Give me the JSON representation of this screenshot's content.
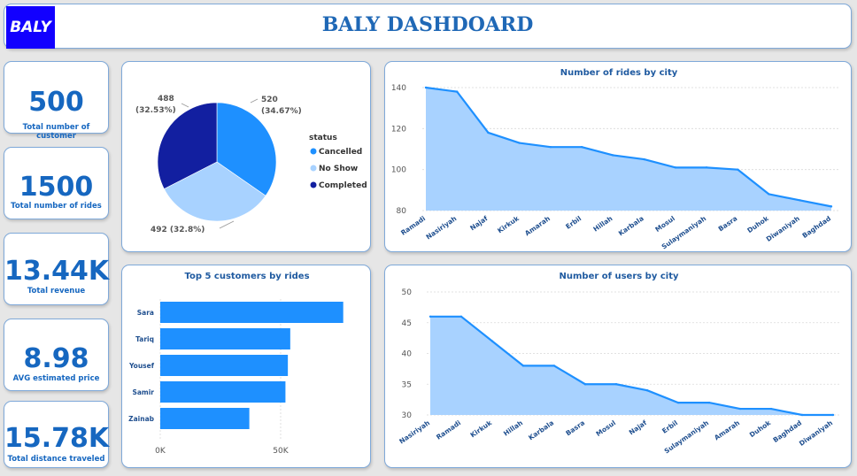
{
  "header": {
    "logo": "BALY",
    "title": "BALY DASHDOARD"
  },
  "kpis": [
    {
      "value": "500",
      "label": "Total number of customer"
    },
    {
      "value": "1500",
      "label": "Total number of rides"
    },
    {
      "value": "13.44K",
      "label": "Total revenue"
    },
    {
      "value": "8.98",
      "label": "AVG estimated price"
    },
    {
      "value": "15.78K",
      "label": "Total distance traveled"
    }
  ],
  "colors": {
    "primary": "#1e90ff",
    "light": "#a8d2ff",
    "dark": "#121fa0",
    "kpi_text": "#1667c0"
  },
  "chart_data": [
    {
      "type": "pie",
      "legend_title": "status",
      "legend_position": "right",
      "slices": [
        {
          "name": "Cancelled",
          "value": 520,
          "label": "520",
          "pct": "(34.67%)",
          "color": "#1e90ff"
        },
        {
          "name": "No Show",
          "value": 492,
          "label": "492 (32.8%)",
          "pct": "",
          "color": "#a8d2ff"
        },
        {
          "name": "Completed",
          "value": 488,
          "label": "488",
          "pct": "(32.53%)",
          "color": "#121fa0"
        }
      ]
    },
    {
      "type": "area",
      "title": "Number of rides by city",
      "categories": [
        "Ramadi",
        "Nasiriyah",
        "Najaf",
        "Kirkuk",
        "Amarah",
        "Erbil",
        "Hillah",
        "Karbala",
        "Mosul",
        "Sulaymaniyah",
        "Basra",
        "Duhok",
        "Diwaniyah",
        "Baghdad"
      ],
      "values": [
        140,
        138,
        118,
        113,
        111,
        111,
        107,
        105,
        101,
        101,
        100,
        88,
        85,
        82
      ],
      "ylim": [
        80,
        140
      ],
      "yticks": [
        "80",
        "100",
        "120",
        "140"
      ],
      "grid": true
    },
    {
      "type": "bar",
      "orientation": "horizontal",
      "title": "Top 5 customers by rides",
      "categories": [
        "Sara",
        "Tariq",
        "Yousef",
        "Samir",
        "Zainab"
      ],
      "values": [
        76000,
        54000,
        53000,
        52000,
        37000
      ],
      "xlim": [
        0,
        82000
      ],
      "xticks": [
        "0K",
        "50K"
      ]
    },
    {
      "type": "area",
      "title": "Number of users by city",
      "categories": [
        "Nasiriyah",
        "Ramadi",
        "Kirkuk",
        "Hillah",
        "Karbala",
        "Basra",
        "Mosul",
        "Najaf",
        "Erbil",
        "Sulaymaniyah",
        "Amarah",
        "Duhok",
        "Baghdad",
        "Diwaniyah"
      ],
      "values": [
        46,
        46,
        42,
        38,
        38,
        35,
        35,
        34,
        32,
        32,
        31,
        31,
        30,
        30
      ],
      "ylim": [
        30,
        50
      ],
      "yticks": [
        "30",
        "35",
        "40",
        "45",
        "50"
      ],
      "grid": true
    }
  ]
}
